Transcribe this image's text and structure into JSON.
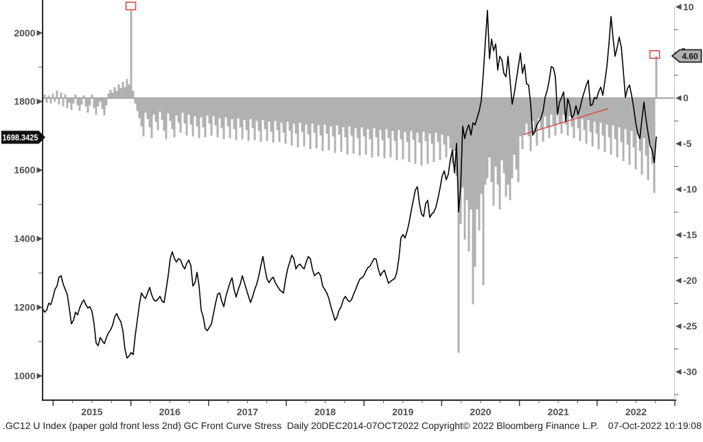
{
  "footer": {
    "security_text": ".GC12 U Index (paper gold front less 2nd) GC Front Curve Stress  Daily 20DEC2014-07OCT2022",
    "copyright_text": "Copyright© 2022 Bloomberg Finance L.P.",
    "timestamp_text": "07-Oct-2022 10:19:08"
  },
  "colors": {
    "price_line": "#000000",
    "spread_bars": "#b1b1b1",
    "zero_baseline": "#a9a9a9",
    "red_annotation": "#d9534a",
    "axis_spine": "#111111",
    "right_spine": "#c2c2c2",
    "tick_text": "#4f4f4f",
    "badge_left_bg": "#111111",
    "badge_left_text": "#ffffff",
    "badge_right_bg": "#b0b0b0",
    "badge_right_border": "#222222"
  },
  "chart_data": {
    "type": "line+bar",
    "title": ".GC12 U Index (paper gold front less 2nd) GC Front Curve Stress",
    "period": "Daily 20DEC2014-07OCT2022",
    "x_axis": {
      "year_tick_values": [
        2015,
        2016,
        2017,
        2018,
        2019,
        2020,
        2021,
        2022,
        2023
      ],
      "year_labels": [
        "2015",
        "2016",
        "2017",
        "2018",
        "2019",
        "2020",
        "2021",
        "2022"
      ],
      "minor_ticks_per_year": 4,
      "start_year": 2014.86,
      "end_year": 2023.0
    },
    "left_axis": {
      "labeled_ticks": [
        2000,
        1800,
        1600,
        1400,
        1200,
        1000
      ],
      "minor_ticks": [
        1900,
        1700,
        1500,
        1300,
        1100
      ],
      "min": 929.4,
      "max": 2076,
      "last_price_badge": "1698.3425"
    },
    "right_axis": {
      "labeled_ticks": [
        10,
        0,
        -5,
        -10,
        -15,
        -20,
        -25,
        -30
      ],
      "minor_step": 2.5,
      "min": -33.1,
      "max": 10,
      "last_value_badge": "4.60"
    },
    "series": [
      {
        "name": "GC12 gold front-month price",
        "type": "line",
        "axis": "left",
        "color": "#000000",
        "x_start_year": 2014.864,
        "x_step_year": 0.026502,
        "values": [
          1196,
          1186,
          1192,
          1212,
          1208,
          1228,
          1252,
          1262,
          1288,
          1292,
          1268,
          1252,
          1238,
          1196,
          1152,
          1162,
          1186,
          1178,
          1198,
          1212,
          1222,
          1208,
          1198,
          1202,
          1188,
          1152,
          1096,
          1088,
          1112,
          1102,
          1094,
          1112,
          1126,
          1134,
          1148,
          1172,
          1182,
          1168,
          1158,
          1132,
          1078,
          1052,
          1058,
          1068,
          1062,
          1118,
          1162,
          1208,
          1242,
          1232,
          1226,
          1242,
          1258,
          1236,
          1222,
          1218,
          1224,
          1232,
          1218,
          1214,
          1252,
          1292,
          1342,
          1362,
          1342,
          1332,
          1342,
          1338,
          1322,
          1312,
          1328,
          1338,
          1322,
          1262,
          1272,
          1302,
          1262,
          1192,
          1172,
          1138,
          1132,
          1142,
          1152,
          1182,
          1212,
          1238,
          1242,
          1218,
          1202,
          1232,
          1252,
          1272,
          1286,
          1252,
          1230,
          1252,
          1268,
          1292,
          1272,
          1252,
          1232,
          1214,
          1232,
          1252,
          1268,
          1292,
          1322,
          1348,
          1312,
          1282,
          1272,
          1282,
          1288,
          1272,
          1262,
          1252,
          1246,
          1242,
          1282,
          1312,
          1332,
          1352,
          1342,
          1312,
          1322,
          1326,
          1318,
          1312,
          1332,
          1348,
          1342,
          1312,
          1292,
          1298,
          1302,
          1292,
          1262,
          1252,
          1242,
          1226,
          1202,
          1182,
          1162,
          1172,
          1192,
          1202,
          1222,
          1232,
          1222,
          1216,
          1222,
          1238,
          1252,
          1268,
          1282,
          1286,
          1292,
          1306,
          1316,
          1320,
          1332,
          1342,
          1340,
          1312,
          1292,
          1302,
          1308,
          1288,
          1270,
          1276,
          1280,
          1284,
          1302,
          1342,
          1402,
          1412,
          1402,
          1422,
          1448,
          1482,
          1512,
          1542,
          1552,
          1502,
          1472,
          1465,
          1502,
          1512,
          1462,
          1472,
          1478,
          1492,
          1518,
          1548,
          1582,
          1598,
          1572,
          1588,
          1632,
          1658,
          1592,
          1678,
          1478,
          1552,
          1728,
          1692,
          1718,
          1732,
          1702,
          1738,
          1732,
          1752,
          1772,
          1802,
          1882,
          1975,
          2066,
          1925,
          1982,
          1948,
          1968,
          1892,
          1932,
          1922,
          1882,
          1872,
          1932,
          1862,
          1792,
          1822,
          1862,
          1902,
          1942,
          1882,
          1908,
          1852,
          1848,
          1792,
          1702,
          1712,
          1732,
          1742,
          1752,
          1772,
          1812,
          1832,
          1862,
          1902,
          1898,
          1872,
          1762,
          1798,
          1812,
          1828,
          1742,
          1808,
          1788,
          1752,
          1762,
          1788,
          1762,
          1782,
          1808,
          1828,
          1848,
          1862,
          1788,
          1792,
          1812,
          1808,
          1828,
          1842,
          1818,
          1858,
          1902,
          1968,
          2048,
          1985,
          1932,
          1958,
          1988,
          1958,
          1888,
          1812,
          1838,
          1848,
          1818,
          1782,
          1738,
          1708,
          1692,
          1748,
          1798,
          1748,
          1708,
          1672,
          1658,
          1622,
          1698
        ]
      },
      {
        "name": "paper gold front less 2nd spread",
        "type": "bar",
        "axis": "right",
        "baseline": 0,
        "color": "#b1b1b1",
        "x_start_year": 2014.864,
        "x_step_year": 0.026502,
        "values": [
          -0.3,
          0.4,
          -0.5,
          0.3,
          -0.6,
          0.5,
          -0.4,
          0.8,
          -0.7,
          0.6,
          -0.9,
          0.4,
          -1.1,
          -0.5,
          -1.3,
          -0.6,
          0.4,
          -0.8,
          -1.4,
          -0.7,
          0.3,
          -0.9,
          -1.6,
          -0.8,
          0.4,
          -1.1,
          -1.8,
          -0.9,
          -0.4,
          -1.2,
          -1.9,
          -0.8,
          0.5,
          0.9,
          0.6,
          1.2,
          0.8,
          1.5,
          1.1,
          1.8,
          1.2,
          2.1,
          1.5,
          9.6,
          0.8,
          -0.6,
          -1.4,
          -2.2,
          -3.1,
          -4.2,
          -1.6,
          -2.3,
          -3.2,
          -4.4,
          -1.8,
          -2.6,
          -3.5,
          -1.5,
          -2.4,
          -3.6,
          -4.5,
          -1.7,
          -2.5,
          -3.4,
          -4.3,
          -1.9,
          -2.7,
          -3.8,
          -1.6,
          -2.8,
          -4.1,
          -1.8,
          -2.9,
          -4.2,
          -2.0,
          -3.1,
          -4.4,
          -2.1,
          -3.2,
          -4.3,
          -1.9,
          -2.8,
          -4.1,
          -2.0,
          -3.0,
          -4.3,
          -2.2,
          -3.3,
          -4.5,
          -2.1,
          -3.1,
          -4.4,
          -2.3,
          -3.4,
          -4.6,
          -2.2,
          -3.2,
          -4.5,
          -2.4,
          -3.5,
          -4.7,
          -2.3,
          -3.3,
          -4.6,
          -2.5,
          -3.6,
          -4.8,
          -2.4,
          -3.4,
          -4.7,
          -2.6,
          -3.7,
          -4.9,
          -2.5,
          -3.5,
          -4.8,
          -2.7,
          -3.8,
          -5.0,
          -2.6,
          -3.6,
          -5.2,
          -2.8,
          -3.9,
          -5.4,
          -2.7,
          -3.7,
          -5.3,
          -2.9,
          -4.0,
          -5.6,
          -2.8,
          -3.8,
          -5.5,
          -3.0,
          -4.1,
          -5.8,
          -2.9,
          -3.9,
          -5.7,
          -3.1,
          -4.2,
          -6.0,
          -3.0,
          -4.0,
          -5.9,
          -3.2,
          -4.3,
          -6.2,
          -3.1,
          -4.1,
          -6.1,
          -3.3,
          -4.4,
          -6.3,
          -3.2,
          -4.2,
          -6.2,
          -3.4,
          -4.5,
          -6.5,
          -3.3,
          -4.3,
          -6.4,
          -3.5,
          -4.6,
          -6.6,
          -3.4,
          -4.4,
          -6.5,
          -3.6,
          -4.7,
          -6.8,
          -3.5,
          -4.5,
          -6.7,
          -3.7,
          -4.8,
          -7.0,
          -3.6,
          -4.6,
          -7.2,
          -3.8,
          -4.9,
          -7.4,
          -3.7,
          -4.7,
          -7.2,
          -3.9,
          -5.0,
          -7.0,
          -3.8,
          -4.8,
          -6.8,
          -4.0,
          -5.1,
          -6.5,
          -4.2,
          -5.5,
          -7.2,
          -5.8,
          -8.5,
          -27.9,
          -13.8,
          -9.8,
          -15.5,
          -11.2,
          -16.8,
          -12.2,
          -22.6,
          -18.5,
          -12.2,
          -14.5,
          -10.5,
          -20.5,
          -9.5,
          -8.8,
          -6.5,
          -9.2,
          -11.8,
          -7.5,
          -9.5,
          -12.2,
          -6.8,
          -8.2,
          -10.8,
          -9.5,
          -11.2,
          -8.8,
          -6.2,
          -7.8,
          -9.2,
          -4.2,
          -5.6,
          -4.0,
          -2.8,
          -4.2,
          -5.8,
          -2.5,
          -3.8,
          -5.2,
          -2.2,
          -3.4,
          -4.8,
          -2.0,
          -3.2,
          -4.4,
          -1.8,
          -2.9,
          -4.1,
          -1.7,
          -2.8,
          -3.9,
          -1.8,
          -2.9,
          -4.1,
          -2.0,
          -3.1,
          -4.4,
          -2.1,
          -3.3,
          -4.7,
          -2.3,
          -3.5,
          -5.0,
          -2.4,
          -3.7,
          -5.3,
          -2.6,
          -3.9,
          -5.6,
          -2.7,
          -4.1,
          -5.9,
          -2.9,
          -4.3,
          -6.2,
          -3.0,
          -4.5,
          -6.5,
          -3.2,
          -4.8,
          -6.9,
          -3.4,
          -5.1,
          -7.3,
          -3.6,
          -5.4,
          -7.8,
          -4.0,
          -5.8,
          -8.4,
          -4.4,
          -6.3,
          -9.0,
          -5.0,
          -7.2,
          -10.4,
          4.6
        ]
      }
    ],
    "annotations": {
      "red_squares": [
        {
          "x_year": 2015.999,
          "value": 10.1
        },
        {
          "x_year": 2022.74,
          "value": 4.78
        }
      ],
      "trendline": {
        "x1_year": 2021.048,
        "v1": -4.0,
        "x2_year": 2022.143,
        "v2": -1.15
      }
    }
  }
}
